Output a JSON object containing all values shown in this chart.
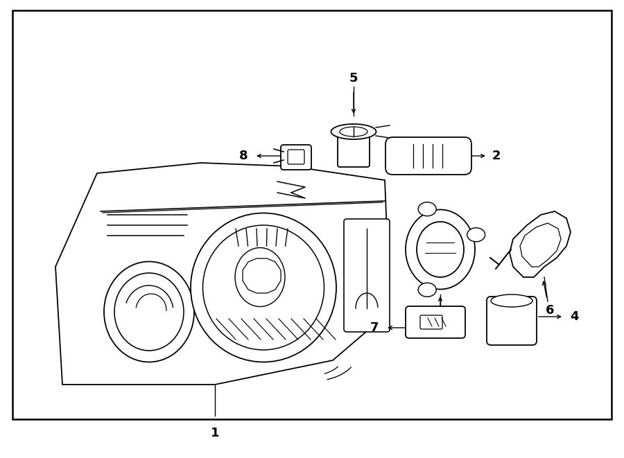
{
  "bg_color": "#ffffff",
  "border_color": "#000000",
  "line_color": "#000000",
  "label_color": "#000000",
  "fig_width": 9.0,
  "fig_height": 6.61,
  "dpi": 100
}
